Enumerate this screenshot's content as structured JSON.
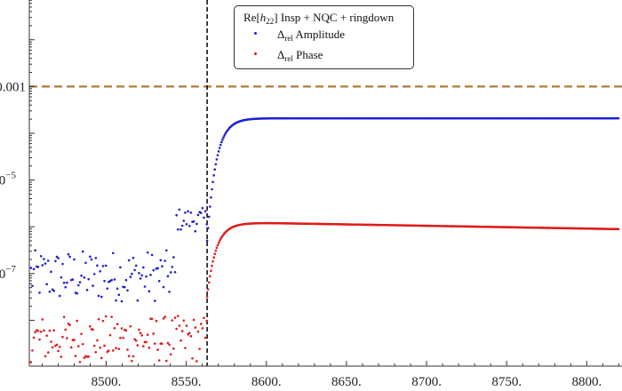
{
  "chart_data": {
    "type": "scatter",
    "title": "",
    "xlabel": "",
    "ylabel": "",
    "xlim": [
      8452,
      8822
    ],
    "ylim_log10": [
      -8.98,
      -1.15
    ],
    "yscale": "log",
    "x_ticks": [
      8500,
      8550,
      8600,
      8650,
      8700,
      8750,
      8800
    ],
    "x_tick_labels": [
      "8500.",
      "8550.",
      "8600.",
      "8650.",
      "8700.",
      "8750.",
      "8800."
    ],
    "y_ticks": [
      0.001,
      1e-05,
      1e-07
    ],
    "y_tick_labels": [
      "0.001",
      "10",
      "10"
    ],
    "y_tick_exponents": [
      "",
      "−5",
      "−7"
    ],
    "grid": false,
    "legend_position": "top-center",
    "legend": {
      "prefix": "Re[",
      "h": "h",
      "h_sub": "22",
      "suffix": "]  Insp + NQC + ringdown"
    },
    "reference_lines": [
      {
        "type": "horizontal",
        "y": 0.001,
        "style": "dashed",
        "color": "#b07a3c"
      },
      {
        "type": "vertical",
        "x": 8563,
        "style": "dashed",
        "color": "#000000"
      }
    ],
    "series": [
      {
        "name_symbol": "Δ",
        "name_sub": "rel",
        "name_text": "Amplitude",
        "color": "#1f1fd6",
        "noise_log10_range": [
          -7.6,
          -6.5
        ],
        "jump_x": 8543,
        "jump_log10_range": [
          -6.1,
          -5.6
        ],
        "rise_start_log10": -6.3,
        "plateau_log10": -3.68,
        "tail_end_log10": -3.68
      },
      {
        "name_symbol": "Δ",
        "name_sub": "rel",
        "name_text": "Phase",
        "color": "#e01a1a",
        "noise_log10_range": [
          -8.9,
          -7.9
        ],
        "rise_start_log10": -7.5,
        "plateau_log10": -5.92,
        "tail_end_log10": -6.05
      }
    ],
    "merger_x": 8563,
    "rise_tau": 5.5,
    "x_end": 8820
  }
}
